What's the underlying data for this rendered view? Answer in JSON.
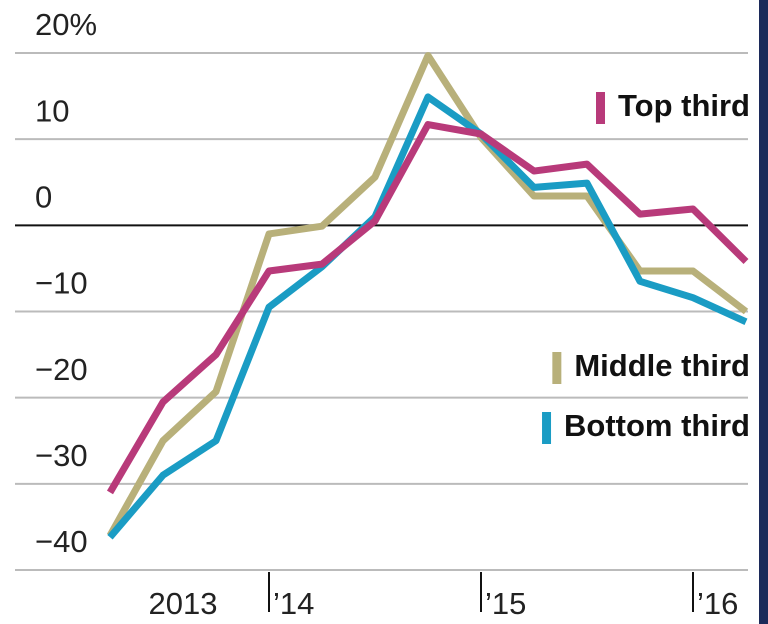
{
  "chart_data": {
    "type": "line",
    "categories": [
      null,
      "2013",
      null,
      "’14",
      null,
      null,
      null,
      "’15",
      null,
      null,
      null,
      "’16",
      null
    ],
    "series": [
      {
        "name": "Top third",
        "color": "#b83a7a",
        "values": [
          -31,
          -20.5,
          -15,
          -5.3,
          -4.5,
          0.5,
          11.7,
          10.6,
          6.3,
          7.1,
          1.3,
          1.9,
          -4.2
        ]
      },
      {
        "name": "Middle third",
        "color": "#b8b07a",
        "values": [
          -36,
          -25,
          -19.3,
          -1,
          -0.1,
          5.6,
          19.7,
          10.2,
          3.4,
          3.4,
          -5.3,
          -5.3,
          -10
        ]
      },
      {
        "name": "Bottom third",
        "color": "#1a9cc4",
        "values": [
          -36.2,
          -29,
          -25,
          -9.5,
          -4.8,
          1,
          14.9,
          10.6,
          4.4,
          4.9,
          -6.5,
          -8.4,
          -11.2
        ]
      }
    ],
    "ylim": [
      -40,
      20
    ],
    "yticks": [
      {
        "value": 20,
        "label": "20%"
      },
      10,
      0,
      {
        "value": -10,
        "label": "−10"
      },
      {
        "value": -20,
        "label": "−20"
      },
      {
        "value": -30,
        "label": "−30"
      },
      {
        "value": -40,
        "label": "−40"
      }
    ],
    "grid": true
  }
}
